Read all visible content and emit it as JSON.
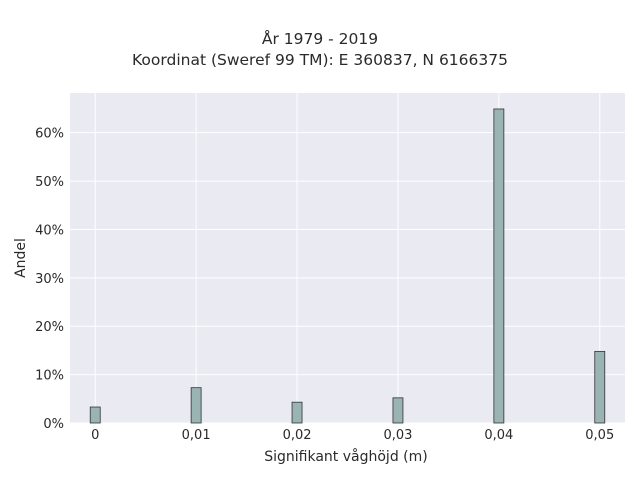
{
  "chart_data": {
    "type": "bar",
    "title": "År 1979 - 2019",
    "subtitle": "Koordinat (Sweref 99 TM): E 360837, N 6166375",
    "xlabel": "Signifikant våghöjd (m)",
    "ylabel": "Andel",
    "x": [
      0,
      0.01,
      0.02,
      0.03,
      0.04,
      0.05
    ],
    "x_tick_labels": [
      "0",
      "0,01",
      "0,02",
      "0,03",
      "0,04",
      "0,05"
    ],
    "values": [
      3.3,
      7.3,
      4.3,
      5.2,
      64.9,
      14.8
    ],
    "value_unit": "%",
    "y_ticks": [
      0,
      10,
      20,
      30,
      40,
      50,
      60
    ],
    "y_tick_labels": [
      "0%",
      "10%",
      "20%",
      "30%",
      "40%",
      "50%",
      "60%"
    ],
    "xlim": [
      -0.0025,
      0.0525
    ],
    "ylim": [
      0,
      68.2
    ],
    "grid": true,
    "bar_color": "#9ab4b4",
    "bar_edge_color": "#333333",
    "plot_background": "#e9eaf2"
  }
}
